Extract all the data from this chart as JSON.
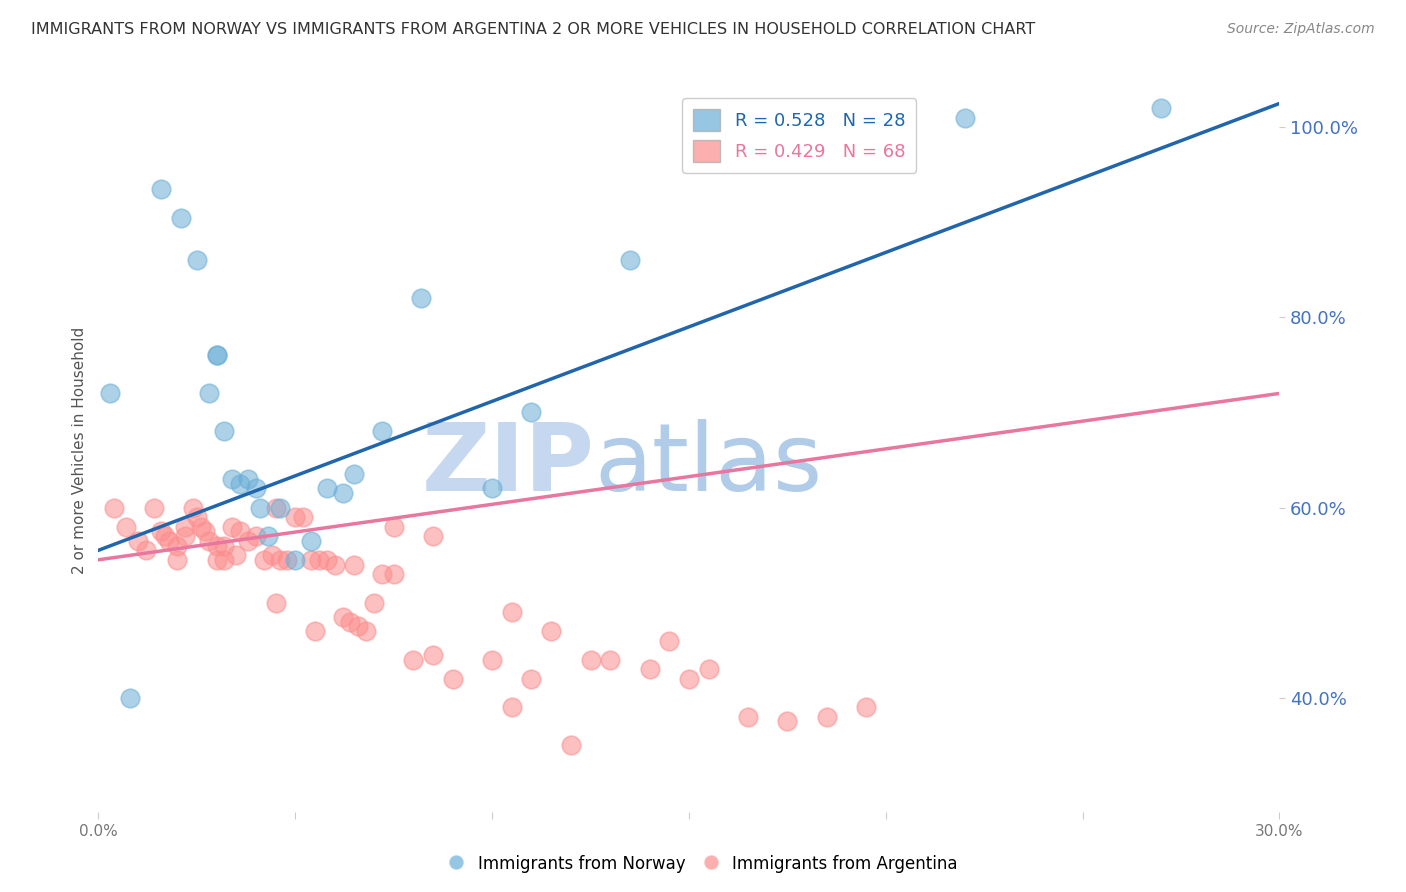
{
  "title": "IMMIGRANTS FROM NORWAY VS IMMIGRANTS FROM ARGENTINA 2 OR MORE VEHICLES IN HOUSEHOLD CORRELATION CHART",
  "source": "Source: ZipAtlas.com",
  "ylabel": "2 or more Vehicles in Household",
  "xlim": [
    0.0,
    0.3
  ],
  "ylim": [
    0.28,
    1.04
  ],
  "right_yticks": [
    0.4,
    0.6,
    0.8,
    1.0
  ],
  "right_yticklabels": [
    "40.0%",
    "60.0%",
    "80.0%",
    "100.0%"
  ],
  "bottom_xticks": [
    0.0,
    0.05,
    0.1,
    0.15,
    0.2,
    0.25,
    0.3
  ],
  "bottom_xticklabels": [
    "0.0%",
    "",
    "",
    "",
    "",
    "",
    "30.0%"
  ],
  "norway_R": 0.528,
  "norway_N": 28,
  "argentina_R": 0.429,
  "argentina_N": 68,
  "norway_color": "#6baed6",
  "argentina_color": "#fc8d8d",
  "norway_line_color": "#2166ac",
  "argentina_line_color": "#e8769f",
  "watermark": "ZIPatlas",
  "norway_x": [
    0.008,
    0.016,
    0.021,
    0.025,
    0.028,
    0.03,
    0.03,
    0.032,
    0.034,
    0.036,
    0.038,
    0.04,
    0.041,
    0.043,
    0.046,
    0.05,
    0.054,
    0.058,
    0.062,
    0.065,
    0.072,
    0.082,
    0.1,
    0.11,
    0.135,
    0.22,
    0.27,
    0.003
  ],
  "norway_y": [
    0.4,
    0.935,
    0.905,
    0.86,
    0.72,
    0.76,
    0.76,
    0.68,
    0.63,
    0.625,
    0.63,
    0.62,
    0.6,
    0.57,
    0.6,
    0.545,
    0.565,
    0.62,
    0.615,
    0.635,
    0.68,
    0.82,
    0.62,
    0.7,
    0.86,
    1.01,
    1.02,
    0.72
  ],
  "argentina_x": [
    0.004,
    0.007,
    0.01,
    0.012,
    0.014,
    0.016,
    0.017,
    0.018,
    0.02,
    0.02,
    0.022,
    0.022,
    0.024,
    0.025,
    0.026,
    0.027,
    0.028,
    0.03,
    0.03,
    0.032,
    0.032,
    0.034,
    0.035,
    0.036,
    0.038,
    0.04,
    0.042,
    0.044,
    0.045,
    0.046,
    0.048,
    0.05,
    0.052,
    0.054,
    0.056,
    0.058,
    0.06,
    0.062,
    0.064,
    0.066,
    0.068,
    0.07,
    0.072,
    0.075,
    0.08,
    0.085,
    0.09,
    0.1,
    0.105,
    0.11,
    0.12,
    0.13,
    0.14,
    0.15,
    0.165,
    0.175,
    0.185,
    0.195,
    0.145,
    0.155,
    0.105,
    0.115,
    0.125,
    0.045,
    0.055,
    0.065,
    0.075,
    0.085
  ],
  "argentina_y": [
    0.6,
    0.58,
    0.565,
    0.555,
    0.6,
    0.575,
    0.57,
    0.565,
    0.56,
    0.545,
    0.58,
    0.57,
    0.6,
    0.59,
    0.58,
    0.575,
    0.565,
    0.56,
    0.545,
    0.56,
    0.545,
    0.58,
    0.55,
    0.575,
    0.565,
    0.57,
    0.545,
    0.55,
    0.5,
    0.545,
    0.545,
    0.59,
    0.59,
    0.545,
    0.545,
    0.545,
    0.54,
    0.485,
    0.48,
    0.475,
    0.47,
    0.5,
    0.53,
    0.58,
    0.44,
    0.445,
    0.42,
    0.44,
    0.39,
    0.42,
    0.35,
    0.44,
    0.43,
    0.42,
    0.38,
    0.375,
    0.38,
    0.39,
    0.46,
    0.43,
    0.49,
    0.47,
    0.44,
    0.6,
    0.47,
    0.54,
    0.53,
    0.57
  ],
  "grid_color": "#cccccc",
  "background_color": "#ffffff",
  "title_color": "#333333",
  "right_axis_color": "#4472c4",
  "watermark_color": "#dce9f7",
  "norway_line_x": [
    0.0,
    0.3
  ],
  "norway_line_y": [
    0.555,
    1.025
  ],
  "argentina_line_x": [
    0.0,
    0.3
  ],
  "argentina_line_y": [
    0.545,
    0.72
  ]
}
